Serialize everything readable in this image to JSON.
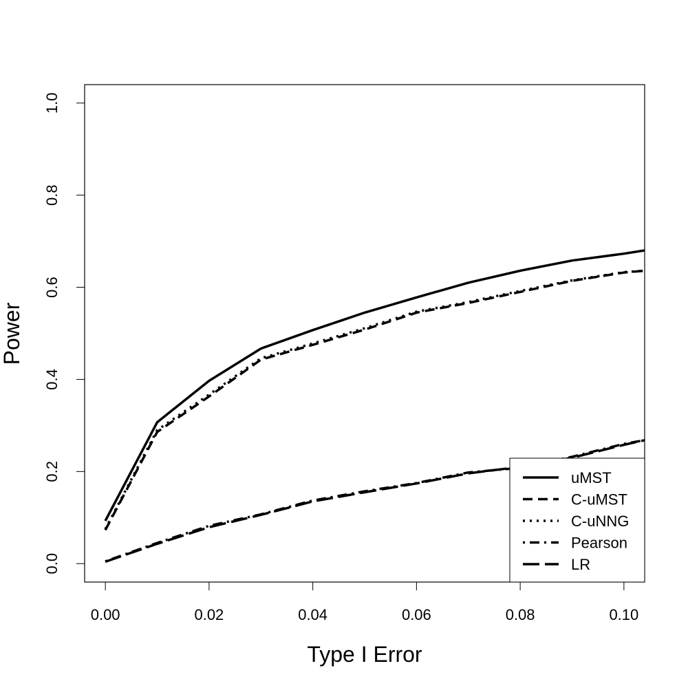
{
  "chart_data": {
    "type": "line",
    "title": "",
    "xlabel": "Type I Error",
    "ylabel": "Power",
    "xlim": [
      -0.004,
      0.104
    ],
    "ylim": [
      -0.04,
      1.04
    ],
    "xticks": [
      0.0,
      0.02,
      0.04,
      0.06,
      0.08,
      0.1
    ],
    "xtick_labels": [
      "0.00",
      "0.02",
      "0.04",
      "0.06",
      "0.08",
      "0.10"
    ],
    "yticks": [
      0.0,
      0.2,
      0.4,
      0.6,
      0.8,
      1.0
    ],
    "ytick_labels": [
      "0.0",
      "0.2",
      "0.4",
      "0.6",
      "0.8",
      "1.0"
    ],
    "grid": false,
    "legend_position": "bottom-right",
    "x": [
      0.0,
      0.01,
      0.02,
      0.03,
      0.04,
      0.05,
      0.06,
      0.07,
      0.08,
      0.09,
      0.1,
      0.104
    ],
    "series": [
      {
        "name": "uMST",
        "dash": "solid",
        "values": [
          0.093,
          0.307,
          0.397,
          0.467,
          0.507,
          0.545,
          0.578,
          0.61,
          0.636,
          0.658,
          0.673,
          0.68
        ]
      },
      {
        "name": "C-uMST",
        "dash": "dashed",
        "values": [
          0.073,
          0.286,
          0.363,
          0.443,
          0.475,
          0.508,
          0.545,
          0.566,
          0.59,
          0.614,
          0.632,
          0.636
        ]
      },
      {
        "name": "C-uNNG",
        "dash": "dotted",
        "values": [
          0.075,
          0.29,
          0.367,
          0.446,
          0.478,
          0.511,
          0.547,
          0.568,
          0.592,
          0.615,
          0.633,
          0.636
        ]
      },
      {
        "name": "Pearson",
        "dash": "dotdash",
        "values": [
          0.005,
          0.045,
          0.082,
          0.107,
          0.137,
          0.157,
          0.175,
          0.198,
          0.208,
          0.232,
          0.26,
          0.268
        ]
      },
      {
        "name": "LR",
        "dash": "longdash",
        "values": [
          0.004,
          0.043,
          0.079,
          0.106,
          0.135,
          0.155,
          0.174,
          0.196,
          0.21,
          0.23,
          0.258,
          0.268
        ]
      }
    ]
  }
}
